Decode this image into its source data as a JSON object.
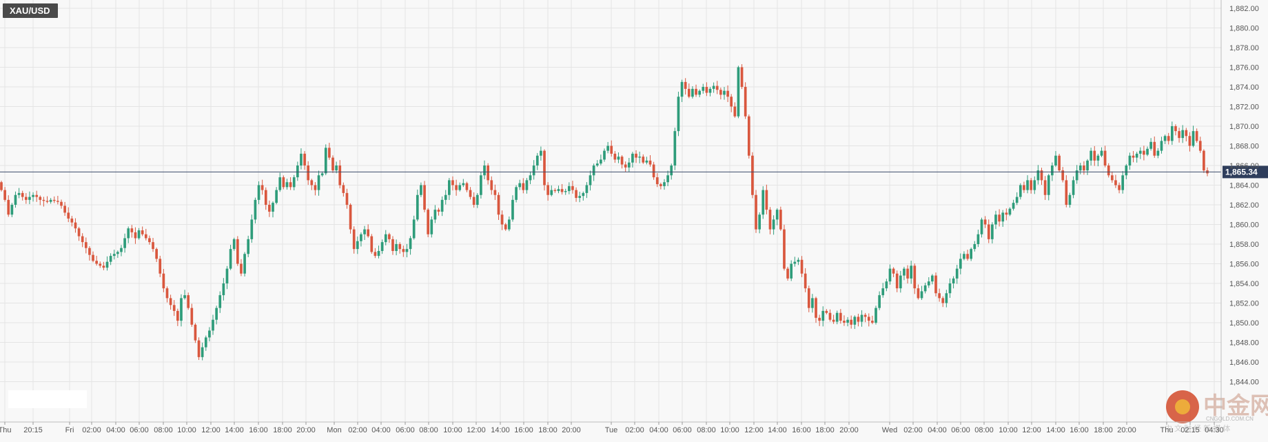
{
  "symbol_label": "XAU/USD",
  "colors": {
    "background": "#f8f8f8",
    "grid": "#e4e4e4",
    "bull": "#2e9c7a",
    "bear": "#d9573e",
    "price_line": "#3b4a6b",
    "price_tag_bg": "#2f3e5c",
    "symbol_bg": "#4a4a4a"
  },
  "watermark": {
    "logo_text": "中金网",
    "subtitle": "中 文 财 经 新 媒 体",
    "url_text": "CNGOLD.COM.CN"
  },
  "chart_data": {
    "type": "candlestick",
    "title": "XAU/USD",
    "ylim": [
      1843,
      1883
    ],
    "y_ticks": [
      "1,882.00",
      "1,880.00",
      "1,878.00",
      "1,876.00",
      "1,874.00",
      "1,872.00",
      "1,870.00",
      "1,868.00",
      "1,866.00",
      "1,864.00",
      "1,862.00",
      "1,860.00",
      "1,858.00",
      "1,856.00",
      "1,854.00",
      "1,852.00",
      "1,850.00",
      "1,848.00",
      "1,846.00",
      "1,844.00"
    ],
    "x_ticks": [
      "Thu",
      "20:15",
      "Fri",
      "02:00",
      "04:00",
      "06:00",
      "08:00",
      "10:00",
      "12:00",
      "14:00",
      "16:00",
      "18:00",
      "20:00",
      "Mon",
      "02:00",
      "04:00",
      "06:00",
      "08:00",
      "10:00",
      "12:00",
      "14:00",
      "16:00",
      "18:00",
      "20:00",
      "Tue",
      "02:00",
      "04:00",
      "06:00",
      "08:00",
      "10:00",
      "12:00",
      "14:00",
      "16:00",
      "18:00",
      "20:00",
      "Wed",
      "02:00",
      "04:00",
      "06:00",
      "08:00",
      "10:00",
      "12:00",
      "14:00",
      "16:00",
      "18:00",
      "20:00",
      "Thu",
      "02:15",
      "04:30"
    ],
    "current_price": 1865.34,
    "current_price_label": "1,865.34",
    "grid": true,
    "candle_interval": "15m",
    "closes": [
      1863.5,
      1862.5,
      1861.0,
      1862.0,
      1863.0,
      1863.2,
      1862.8,
      1862.5,
      1862.8,
      1863.0,
      1862.8,
      1862.5,
      1862.4,
      1862.3,
      1862.5,
      1862.4,
      1862.3,
      1861.9,
      1861.2,
      1860.6,
      1860.2,
      1859.6,
      1858.8,
      1858.2,
      1857.6,
      1856.9,
      1856.3,
      1856.0,
      1855.8,
      1855.6,
      1856.2,
      1856.8,
      1857.0,
      1857.2,
      1857.6,
      1858.6,
      1859.6,
      1859.2,
      1858.6,
      1859.4,
      1859.0,
      1858.6,
      1858.2,
      1857.5,
      1856.5,
      1855.0,
      1853.5,
      1852.5,
      1851.8,
      1851.2,
      1850.2,
      1852.5,
      1852.8,
      1851.5,
      1849.8,
      1848.2,
      1846.5,
      1847.5,
      1848.5,
      1849.2,
      1850.3,
      1851.5,
      1852.8,
      1854.0,
      1855.5,
      1857.5,
      1858.5,
      1856.0,
      1855.0,
      1857.0,
      1858.5,
      1860.5,
      1862.5,
      1864.0,
      1863.5,
      1862.0,
      1861.3,
      1862.2,
      1863.5,
      1864.8,
      1863.8,
      1864.3,
      1863.8,
      1864.8,
      1866.0,
      1867.2,
      1866.0,
      1864.5,
      1864.0,
      1863.5,
      1865.0,
      1865.2,
      1867.8,
      1866.8,
      1865.5,
      1866.0,
      1864.0,
      1863.2,
      1862.0,
      1859.5,
      1857.5,
      1858.3,
      1859.0,
      1859.5,
      1858.8,
      1857.2,
      1856.8,
      1857.3,
      1858.2,
      1859.0,
      1858.5,
      1857.3,
      1858.0,
      1857.5,
      1857.2,
      1857.5,
      1858.6,
      1860.5,
      1863.0,
      1864.0,
      1861.5,
      1859.0,
      1860.5,
      1861.5,
      1861.3,
      1862.5,
      1863.0,
      1864.5,
      1864.0,
      1863.5,
      1864.0,
      1864.2,
      1863.5,
      1862.8,
      1862.0,
      1863.0,
      1865.0,
      1866.0,
      1864.5,
      1863.5,
      1863.0,
      1861.0,
      1860.0,
      1859.5,
      1860.5,
      1862.5,
      1863.8,
      1864.2,
      1863.5,
      1864.5,
      1865.0,
      1866.0,
      1867.0,
      1867.5,
      1864.0,
      1863.0,
      1863.5,
      1863.4,
      1863.6,
      1863.3,
      1863.4,
      1863.9,
      1863.5,
      1862.7,
      1862.9,
      1863.2,
      1864.0,
      1865.0,
      1866.0,
      1866.2,
      1866.6,
      1867.5,
      1868.0,
      1867.2,
      1866.6,
      1866.9,
      1866.1,
      1865.8,
      1866.3,
      1867.2,
      1866.8,
      1866.9,
      1866.3,
      1866.5,
      1866.1,
      1864.8,
      1864.1,
      1863.9,
      1864.3,
      1865.0,
      1866.0,
      1869.5,
      1873.0,
      1874.5,
      1873.8,
      1873.0,
      1873.8,
      1873.2,
      1873.6,
      1874.0,
      1873.4,
      1873.8,
      1874.1,
      1873.7,
      1873.2,
      1873.6,
      1873.0,
      1872.0,
      1871.0,
      1876.0,
      1874.0,
      1871.0,
      1867.0,
      1863.0,
      1859.5,
      1861.0,
      1863.5,
      1861.5,
      1859.5,
      1860.5,
      1861.5,
      1859.5,
      1855.5,
      1854.5,
      1856.0,
      1856.2,
      1856.4,
      1855.0,
      1853.5,
      1851.5,
      1852.5,
      1850.5,
      1850.2,
      1851.2,
      1851.0,
      1850.3,
      1850.1,
      1851.0,
      1850.2,
      1850.0,
      1850.3,
      1849.8,
      1850.6,
      1850.1,
      1850.8,
      1850.6,
      1850.2,
      1850.0,
      1851.5,
      1852.8,
      1853.5,
      1854.2,
      1855.5,
      1855.0,
      1853.5,
      1854.8,
      1855.5,
      1854.5,
      1855.8,
      1853.5,
      1852.5,
      1853.2,
      1853.8,
      1854.2,
      1854.8,
      1853.0,
      1852.5,
      1852.0,
      1853.0,
      1854.0,
      1854.5,
      1855.5,
      1856.5,
      1857.0,
      1856.5,
      1857.5,
      1858.0,
      1859.0,
      1860.5,
      1860.0,
      1858.5,
      1860.0,
      1861.0,
      1860.3,
      1861.2,
      1861.0,
      1861.6,
      1862.2,
      1862.8,
      1864.0,
      1863.5,
      1864.5,
      1863.5,
      1864.5,
      1865.5,
      1864.5,
      1863.0,
      1865.0,
      1866.0,
      1867.0,
      1865.5,
      1864.5,
      1862.0,
      1863.0,
      1864.5,
      1865.5,
      1866.0,
      1865.5,
      1866.5,
      1867.5,
      1866.5,
      1867.0,
      1867.5,
      1866.0,
      1865.0,
      1864.5,
      1864.0,
      1863.5,
      1865.0,
      1866.0,
      1867.0,
      1866.8,
      1867.2,
      1867.5,
      1867.1,
      1867.7,
      1868.4,
      1867.0,
      1867.5,
      1868.5,
      1869.0,
      1868.5,
      1870.0,
      1869.5,
      1868.8,
      1869.6,
      1869.0,
      1868.0,
      1869.5,
      1868.5,
      1867.5,
      1865.5,
      1865.2
    ]
  }
}
